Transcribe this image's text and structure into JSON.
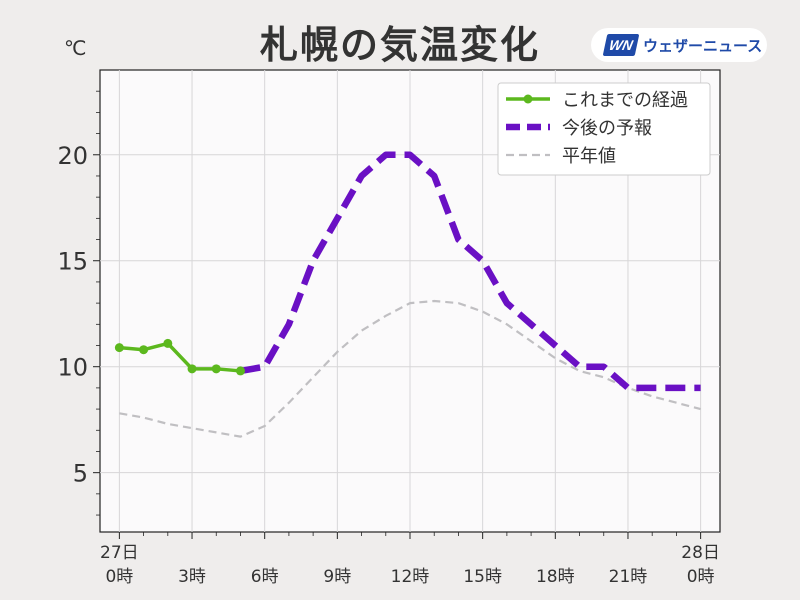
{
  "title": "札幌の気温変化",
  "brand": {
    "logo": "WN",
    "name": "ウェザーニュース"
  },
  "chart_data": {
    "type": "line",
    "title": "札幌の気温変化",
    "ylabel": "℃",
    "xlabel": "",
    "xlim": [
      -0.8,
      24.8
    ],
    "ylim": [
      2.2,
      24
    ],
    "grid": true,
    "legend_position": "top-right",
    "y_ticks": [
      5,
      10,
      15,
      20
    ],
    "x_ticks": [
      {
        "x": 0,
        "lines": [
          "27日",
          "0時"
        ]
      },
      {
        "x": 3,
        "lines": [
          "3時"
        ]
      },
      {
        "x": 6,
        "lines": [
          "6時"
        ]
      },
      {
        "x": 9,
        "lines": [
          "9時"
        ]
      },
      {
        "x": 12,
        "lines": [
          "12時"
        ]
      },
      {
        "x": 15,
        "lines": [
          "15時"
        ]
      },
      {
        "x": 18,
        "lines": [
          "18時"
        ]
      },
      {
        "x": 21,
        "lines": [
          "21時"
        ]
      },
      {
        "x": 24,
        "lines": [
          "28日",
          "0時"
        ]
      }
    ],
    "series": [
      {
        "name": "これまでの経過",
        "color": "#5cb81e",
        "style": "solid-marker",
        "x": [
          0,
          1,
          2,
          3,
          4,
          5
        ],
        "y": [
          10.9,
          10.8,
          11.1,
          9.9,
          9.9,
          9.8
        ]
      },
      {
        "name": "今後の予報",
        "color": "#6a10c4",
        "style": "dashed-thick",
        "x": [
          5,
          6,
          7,
          8,
          9,
          10,
          11,
          12,
          13,
          14,
          15,
          16,
          17,
          18,
          19,
          20,
          21,
          22,
          23,
          24
        ],
        "y": [
          9.8,
          10,
          12,
          15,
          17,
          19,
          20,
          20,
          19,
          16,
          15,
          13,
          12,
          11,
          10,
          10,
          9,
          9,
          9,
          9
        ]
      },
      {
        "name": "平年値",
        "color": "#c0bfc2",
        "style": "dashed-thin",
        "x": [
          0,
          1,
          2,
          3,
          4,
          5,
          6,
          7,
          8,
          9,
          10,
          11,
          12,
          13,
          14,
          15,
          16,
          17,
          18,
          19,
          20,
          21,
          22,
          23,
          24
        ],
        "y": [
          7.8,
          7.6,
          7.3,
          7.1,
          6.9,
          6.7,
          7.2,
          8.3,
          9.5,
          10.7,
          11.7,
          12.4,
          13.0,
          13.1,
          13.0,
          12.6,
          12.0,
          11.2,
          10.4,
          9.8,
          9.5,
          9.0,
          8.6,
          8.3,
          8.0
        ]
      }
    ]
  }
}
